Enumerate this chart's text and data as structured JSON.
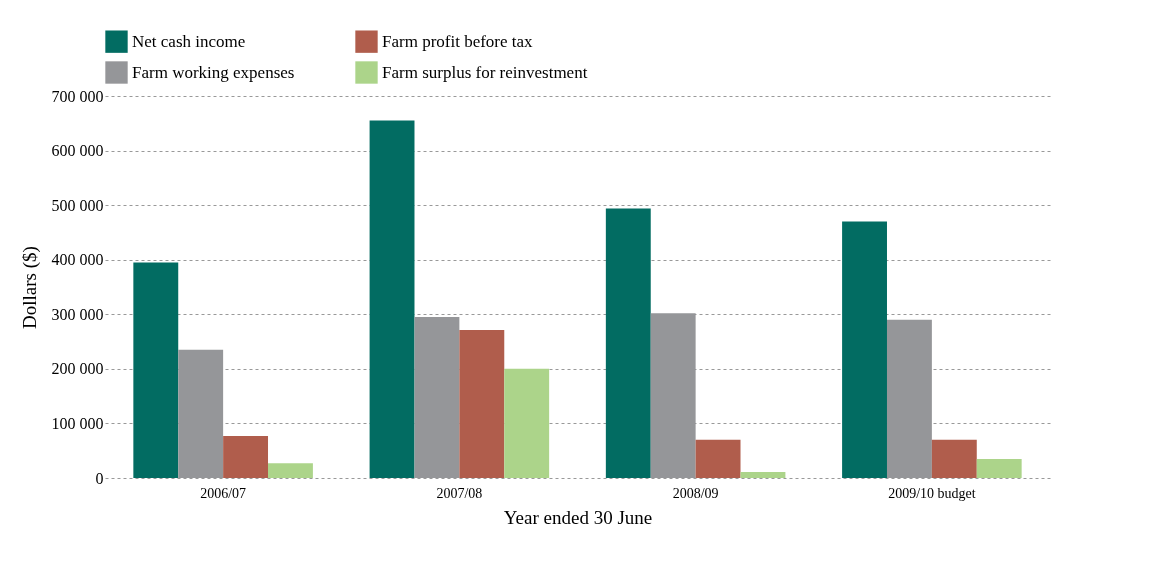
{
  "chart_data": {
    "type": "bar",
    "xlabel": "Year ended 30 June",
    "ylabel": "Dollars ($)",
    "categories": [
      "2006/07",
      "2007/08",
      "2008/09",
      "2009/10 budget"
    ],
    "series": [
      {
        "name": "Net cash income",
        "color": "#026c62",
        "values": [
          395000,
          655000,
          494000,
          470000
        ]
      },
      {
        "name": "Farm working expenses",
        "color": "#959699",
        "values": [
          235000,
          295000,
          302000,
          290000
        ]
      },
      {
        "name": "Farm profit before tax",
        "color": "#b05d4c",
        "values": [
          77000,
          271000,
          70000,
          70000
        ]
      },
      {
        "name": "Farm surplus for reinvestment",
        "color": "#acd48a",
        "values": [
          27000,
          200000,
          11000,
          35000
        ]
      }
    ],
    "ylim": [
      0,
      700000
    ],
    "yticks": [
      {
        "value": 0,
        "label": "0"
      },
      {
        "value": 100000,
        "label": "100 000"
      },
      {
        "value": 200000,
        "label": "200 000"
      },
      {
        "value": 300000,
        "label": "300 000"
      },
      {
        "value": 400000,
        "label": "400 000"
      },
      {
        "value": 500000,
        "label": "500 000"
      },
      {
        "value": 600000,
        "label": "600 000"
      },
      {
        "value": 700000,
        "label": "700 000"
      }
    ],
    "grid": "y",
    "legend": "top"
  }
}
